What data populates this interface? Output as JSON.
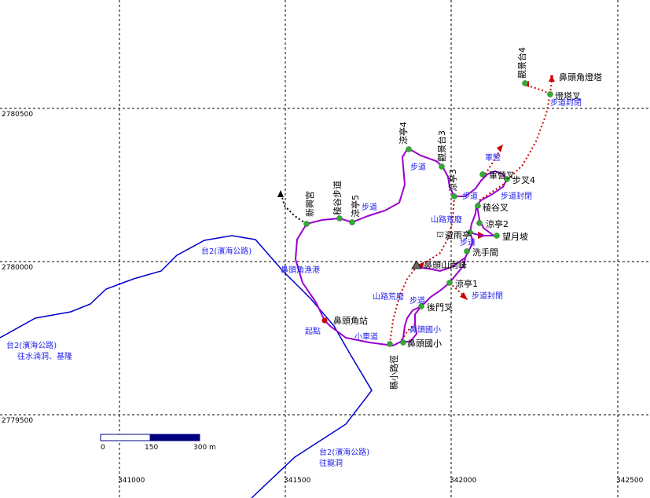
{
  "grid": {
    "x_labels": [
      "341000",
      "341500",
      "342000",
      "342500"
    ],
    "y_labels": [
      "2780500",
      "2780000",
      "2779500"
    ]
  },
  "scale_bar": {
    "labels": [
      "0",
      "150",
      "300 m"
    ]
  },
  "roads": {
    "label_upper": "台2(濱海公路)",
    "label_left": "台2(濱海公路)",
    "label_left_dir": "往水湳洞、基隆",
    "label_lower": "台2(濱海公路)",
    "label_lower_dir": "往龍洞"
  },
  "places": {
    "lighthouse": "鼻頭角燈塔",
    "deck4": "觀景台4",
    "lighthouse_fork": "燈塔叉",
    "trail_closed_top": "步道封閉",
    "pavilion4": "涼亭4",
    "deck3": "觀景台3",
    "pavilion3": "涼亭3",
    "military": "軍營",
    "military_fork": "軍營叉",
    "fork4": "步叉4",
    "trail_closed_mid": "步道封閉",
    "ridge_fork": "稜谷叉",
    "pavilion2": "涼亭2",
    "moon_slope": "望月坡",
    "rain_shelter": "避雨亭",
    "restroom": "洗手間",
    "south_peak": "鼻頭山南峰",
    "pavilion1": "涼亭1",
    "trail_closed_low": "步道封閉",
    "back_gate_fork": "後門叉",
    "school": "鼻頭國小",
    "school_small": "鼻頭國小",
    "bus_stop": "鼻頭角站",
    "start": "起點",
    "harbor": "鼻頭角漁港",
    "temple": "新興宮",
    "ridge_trail": "稜谷步道",
    "pavilion5": "涼亭5",
    "road_small": "小車道",
    "trail_a": "步道",
    "trail_b": "步道",
    "trail_c": "步道",
    "trail_d": "步道",
    "trail_e": "步道",
    "trail_f": "步道",
    "trail_g": "步道",
    "abandoned_a": "山路荒廢",
    "abandoned_b": "山路荒廢",
    "county_road": "縣小路徑"
  },
  "colors": {
    "trail": "#9900cc",
    "road": "#0000cc",
    "closed": "#cc0000",
    "point": "#33aa33",
    "label_blue": "#2222ee"
  }
}
